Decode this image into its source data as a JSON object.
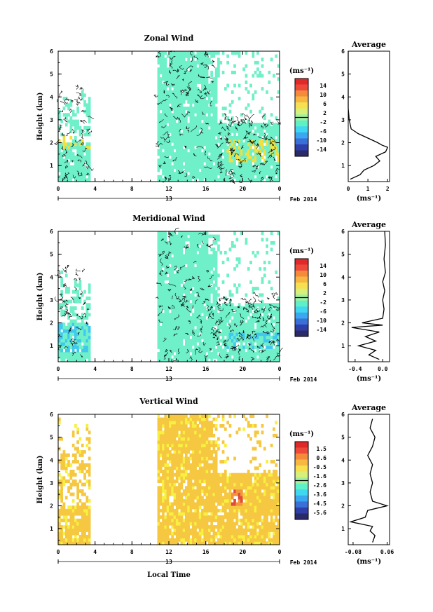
{
  "panels": [
    {
      "title": "Zonal Wind",
      "units": "(ms⁻¹)",
      "colorbar_ticks": [
        "14",
        "10",
        "6",
        "2",
        "-2",
        "-6",
        "-10",
        "-14"
      ],
      "fill": "#6ff0c8",
      "accent": "#f0e040",
      "avg": {
        "title": "Average",
        "xlabel": "(ms⁻¹)",
        "xticks": [
          "0",
          "1",
          "2"
        ],
        "xlim": [
          0,
          2.1
        ],
        "profile": [
          [
            0.1,
            0.4
          ],
          [
            0.6,
            0.6
          ],
          [
            0.8,
            0.8
          ],
          [
            1.3,
            1.0
          ],
          [
            1.6,
            1.2
          ],
          [
            1.4,
            1.4
          ],
          [
            1.9,
            1.6
          ],
          [
            2.0,
            1.8
          ],
          [
            1.7,
            1.9
          ],
          [
            1.5,
            2.0
          ],
          [
            1.0,
            2.2
          ],
          [
            0.5,
            2.4
          ],
          [
            0.15,
            2.6
          ],
          [
            0.05,
            3.0
          ],
          [
            0.0,
            3.5
          ],
          [
            0.0,
            4.5
          ],
          [
            0.0,
            5.5
          ],
          [
            0.0,
            6.0
          ]
        ]
      }
    },
    {
      "title": "Meridional Wind",
      "units": "(ms⁻¹)",
      "colorbar_ticks": [
        "14",
        "10",
        "6",
        "2",
        "-2",
        "-6",
        "-10",
        "-14"
      ],
      "fill": "#6ff0c8",
      "accent": "#40c8f0",
      "avg": {
        "title": "Average",
        "xlabel": "(ms⁻¹)",
        "xticks": [
          "-0.4",
          "0.0"
        ],
        "xlim": [
          -0.5,
          0.1
        ],
        "profile": [
          [
            -0.05,
            0.4
          ],
          [
            -0.2,
            0.6
          ],
          [
            -0.1,
            0.8
          ],
          [
            -0.35,
            1.0
          ],
          [
            -0.1,
            1.2
          ],
          [
            -0.25,
            1.4
          ],
          [
            -0.05,
            1.6
          ],
          [
            -0.45,
            1.8
          ],
          [
            0.0,
            1.9
          ],
          [
            -0.3,
            2.0
          ],
          [
            0.0,
            2.2
          ],
          [
            0.02,
            2.6
          ],
          [
            0.0,
            3.0
          ],
          [
            0.03,
            3.4
          ],
          [
            0.0,
            3.8
          ],
          [
            0.04,
            4.2
          ],
          [
            0.02,
            4.8
          ],
          [
            0.04,
            5.4
          ],
          [
            0.03,
            6.0
          ]
        ]
      }
    },
    {
      "title": "Vertical Wind",
      "units": "(ms⁻¹)",
      "colorbar_ticks": [
        "1.5",
        "0.6",
        "-0.5",
        "-1.6",
        "-2.6",
        "-3.6",
        "-4.5",
        "-5.6"
      ],
      "fill": "#f6c842",
      "accent": "#f7f040",
      "avg": {
        "title": "Average",
        "xlabel": "(ms⁻¹)",
        "xticks": [
          "-0.08",
          "0.06"
        ],
        "xlim": [
          -0.1,
          0.07
        ],
        "profile": [
          [
            0.0,
            0.4
          ],
          [
            0.01,
            0.7
          ],
          [
            -0.01,
            0.9
          ],
          [
            0.0,
            1.1
          ],
          [
            -0.09,
            1.3
          ],
          [
            -0.03,
            1.5
          ],
          [
            -0.02,
            1.8
          ],
          [
            0.06,
            2.0
          ],
          [
            0.0,
            2.2
          ],
          [
            -0.01,
            2.6
          ],
          [
            0.0,
            3.0
          ],
          [
            -0.01,
            3.4
          ],
          [
            0.0,
            3.8
          ],
          [
            -0.02,
            4.2
          ],
          [
            0.0,
            4.6
          ],
          [
            0.01,
            5.0
          ],
          [
            -0.01,
            5.4
          ],
          [
            0.0,
            5.8
          ]
        ]
      }
    }
  ],
  "axes": {
    "ylabel": "Height (km)",
    "yticks": [
      "1",
      "2",
      "3",
      "4",
      "5",
      "6"
    ],
    "xticks": [
      "0",
      "4",
      "8",
      "12",
      "16",
      "20",
      "0"
    ],
    "date_mark": "13",
    "date_label": "Feb 2014",
    "xlabel": "Local Time"
  },
  "chart_data": [
    {
      "type": "heatmap",
      "title": "Zonal Wind",
      "xlabel": "",
      "ylabel": "Height (km)",
      "x_range_hours": [
        0,
        24
      ],
      "ylim": [
        0.3,
        6
      ],
      "data_gaps": [
        [
          3.3,
          10.8
        ]
      ],
      "colorbar": {
        "label": "(ms⁻¹)",
        "range": [
          -14,
          14
        ]
      },
      "typical_value": 0,
      "notable": [
        {
          "time": 19.5,
          "height": 2.0,
          "value": 3
        }
      ]
    },
    {
      "type": "line",
      "title": "Average",
      "xlabel": "(ms⁻¹)",
      "ylabel": "",
      "xlim": [
        0,
        2.1
      ],
      "ylim": [
        0.3,
        6
      ]
    },
    {
      "type": "heatmap",
      "title": "Meridional Wind",
      "xlabel": "",
      "ylabel": "Height (km)",
      "x_range_hours": [
        0,
        24
      ],
      "ylim": [
        0.3,
        6
      ],
      "data_gaps": [
        [
          3.3,
          10.8
        ]
      ],
      "colorbar": {
        "label": "(ms⁻¹)",
        "range": [
          -14,
          14
        ]
      },
      "typical_value": 0,
      "notable": [
        {
          "time": 2.5,
          "height": 1.4,
          "value": -6
        }
      ]
    },
    {
      "type": "line",
      "title": "Average",
      "xlabel": "(ms⁻¹)",
      "ylabel": "",
      "xlim": [
        -0.5,
        0.1
      ],
      "ylim": [
        0.3,
        6
      ]
    },
    {
      "type": "heatmap",
      "title": "Vertical Wind",
      "xlabel": "Local Time",
      "ylabel": "Height (km)",
      "x_range_hours": [
        0,
        24
      ],
      "ylim": [
        0.3,
        6
      ],
      "data_gaps": [
        [
          3.3,
          10.8
        ]
      ],
      "colorbar": {
        "label": "(ms⁻¹)",
        "range": [
          -5.6,
          1.5
        ]
      },
      "typical_value": 0.6,
      "notable": [
        {
          "time": 19.5,
          "height": 2.3,
          "value": 1.5
        }
      ]
    },
    {
      "type": "line",
      "title": "Average",
      "xlabel": "(ms⁻¹)",
      "ylabel": "",
      "xlim": [
        -0.1,
        0.07
      ],
      "ylim": [
        0.3,
        6
      ]
    }
  ]
}
